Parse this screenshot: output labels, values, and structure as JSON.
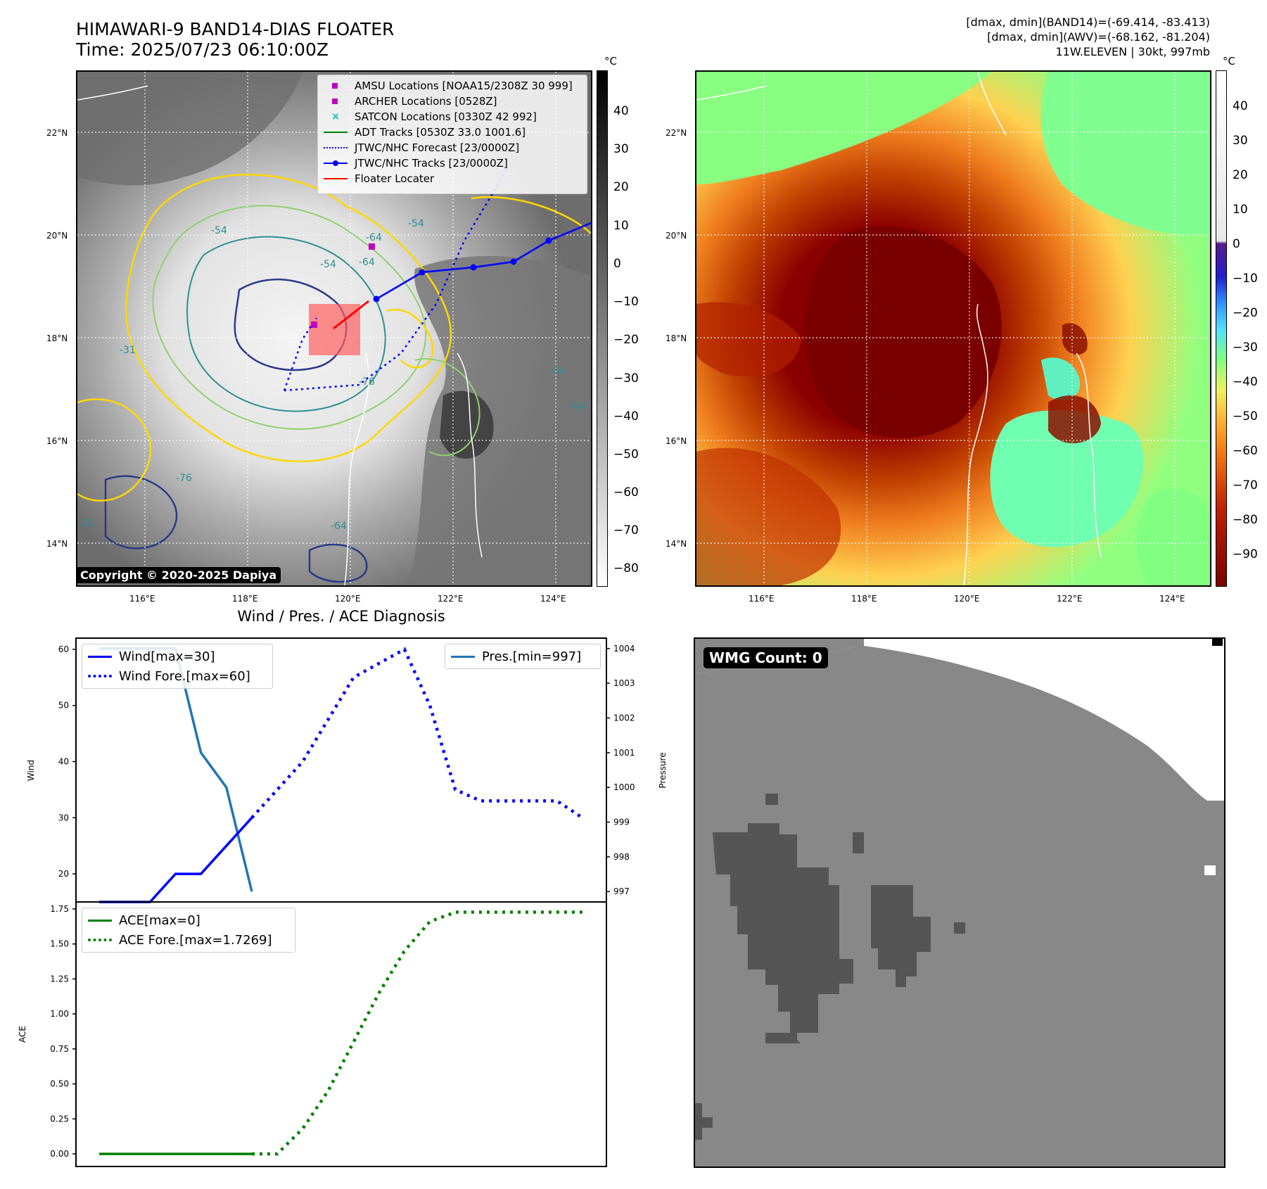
{
  "header": {
    "title_line1": "HIMAWARI-9 BAND14-DIAS FLOATER",
    "title_line2": "Time: 2025/07/23 06:10:00Z",
    "info_line1": "[dmax, dmin](BAND14)=(-69.414, -83.413)",
    "info_line2": "[dmax, dmin](AWV)=(-68.162, -81.204)",
    "info_line3": "11W.ELEVEN | 30kt, 997mb"
  },
  "map_axes": {
    "lat_ticks": [
      "22°N",
      "20°N",
      "18°N",
      "16°N",
      "14°N"
    ],
    "lon_ticks": [
      "116°E",
      "118°E",
      "120°E",
      "122°E",
      "124°E"
    ]
  },
  "ir_panel": {
    "legend": [
      {
        "label": "AMSU Locations [NOAA15/2308Z 30 999]",
        "color": "#c000c0",
        "symbol": "square"
      },
      {
        "label": "ARCHER Locations [0528Z]",
        "color": "#c000c0",
        "symbol": "square"
      },
      {
        "label": "SATCON Locations [0330Z 42 992]",
        "color": "#00c0c0",
        "symbol": "x"
      },
      {
        "label": "ADT Tracks [0530Z 33.0 1001.6]",
        "color": "#008000",
        "symbol": "line"
      },
      {
        "label": "JTWC/NHC Forecast [23/0000Z]",
        "color": "#0000ff",
        "symbol": "dotted"
      },
      {
        "label": "JTWC/NHC Tracks [23/0000Z]",
        "color": "#0000ff",
        "symbol": "line-dot"
      },
      {
        "label": "Floater Locater",
        "color": "#ff0000",
        "symbol": "line"
      }
    ],
    "contour_labels": [
      "-54",
      "-64",
      "-54",
      "-64",
      "-31",
      "-76",
      "-64",
      "-64",
      "-76",
      "-31",
      "-54",
      "-64"
    ],
    "copyright": "Copyright © 2020-2025 Dapiya",
    "colorbar_unit": "°C",
    "colorbar_ticks": [
      "40",
      "30",
      "20",
      "10",
      "0",
      "−10",
      "−20",
      "−30",
      "−40",
      "−50",
      "−60",
      "−70",
      "−80"
    ]
  },
  "wv_panel": {
    "colorbar_unit": "°C",
    "colorbar_ticks": [
      "40",
      "30",
      "20",
      "10",
      "0",
      "−10",
      "−20",
      "−30",
      "−40",
      "−50",
      "−60",
      "−70",
      "−80",
      "−90"
    ]
  },
  "diagnosis": {
    "title": "Wind / Pres. / ACE Diagnosis",
    "wind_ylabel": "Wind",
    "pres_ylabel": "Pressure",
    "ace_ylabel": "ACE",
    "legend_wind": "Wind[max=30]",
    "legend_wind_fore": "Wind Fore.[max=60]",
    "legend_pres": "Pres.[min=997]",
    "legend_ace": "ACE[max=0]",
    "legend_ace_fore": "ACE Fore.[max=1.7269]"
  },
  "wmg_panel": {
    "label": "WMG Count: 0"
  },
  "chart_data": [
    {
      "type": "line",
      "title": "Wind / Pres. / ACE Diagnosis",
      "ylabel": "Wind",
      "ylim": [
        15,
        62
      ],
      "yticks": [
        20,
        30,
        40,
        50,
        60
      ],
      "x": [
        0,
        1,
        2,
        3,
        4,
        5,
        6,
        7,
        8,
        9,
        10,
        11,
        12,
        13,
        14,
        15,
        16,
        17,
        18,
        19
      ],
      "series": [
        {
          "name": "Wind[max=30]",
          "color": "#0000ff",
          "style": "solid",
          "x": [
            0,
            2,
            3,
            4,
            6
          ],
          "values": [
            15,
            15,
            20,
            20,
            30
          ]
        },
        {
          "name": "Wind Fore.[max=60]",
          "color": "#0000ff",
          "style": "dotted",
          "x": [
            6,
            8,
            10,
            12,
            13,
            14,
            15,
            16,
            17,
            18,
            19
          ],
          "values": [
            30,
            40,
            55,
            60,
            50,
            35,
            33,
            33,
            33,
            33,
            30
          ]
        }
      ]
    },
    {
      "type": "line",
      "ylabel": "Pressure",
      "ylim": [
        996.7,
        1004.3
      ],
      "yticks": [
        997,
        998,
        999,
        1000,
        1001,
        1002,
        1003,
        1004
      ],
      "series": [
        {
          "name": "Pres.[min=997]",
          "color": "#1f77b4",
          "style": "solid",
          "x": [
            0,
            3,
            4,
            5,
            6
          ],
          "values": [
            1004,
            1004,
            1001,
            1000,
            997
          ]
        }
      ]
    },
    {
      "type": "line",
      "ylabel": "ACE",
      "ylim": [
        -0.09,
        1.8
      ],
      "yticks": [
        0.0,
        0.25,
        0.5,
        0.75,
        1.0,
        1.25,
        1.5,
        1.75
      ],
      "ytick_labels": [
        "0.00",
        "0.25",
        "0.50",
        "0.75",
        "1.00",
        "1.25",
        "1.50",
        "1.75"
      ],
      "series": [
        {
          "name": "ACE[max=0]",
          "color": "#008000",
          "style": "solid",
          "x": [
            0,
            6
          ],
          "values": [
            0,
            0
          ]
        },
        {
          "name": "ACE Fore.[max=1.7269]",
          "color": "#008000",
          "style": "dotted",
          "x": [
            6,
            7,
            8,
            9,
            10,
            11,
            12,
            13,
            14,
            15,
            16,
            17,
            18,
            19
          ],
          "values": [
            0,
            0,
            0.18,
            0.45,
            0.8,
            1.15,
            1.45,
            1.66,
            1.7269,
            1.7269,
            1.7269,
            1.7269,
            1.7269,
            1.7269
          ]
        }
      ]
    }
  ]
}
